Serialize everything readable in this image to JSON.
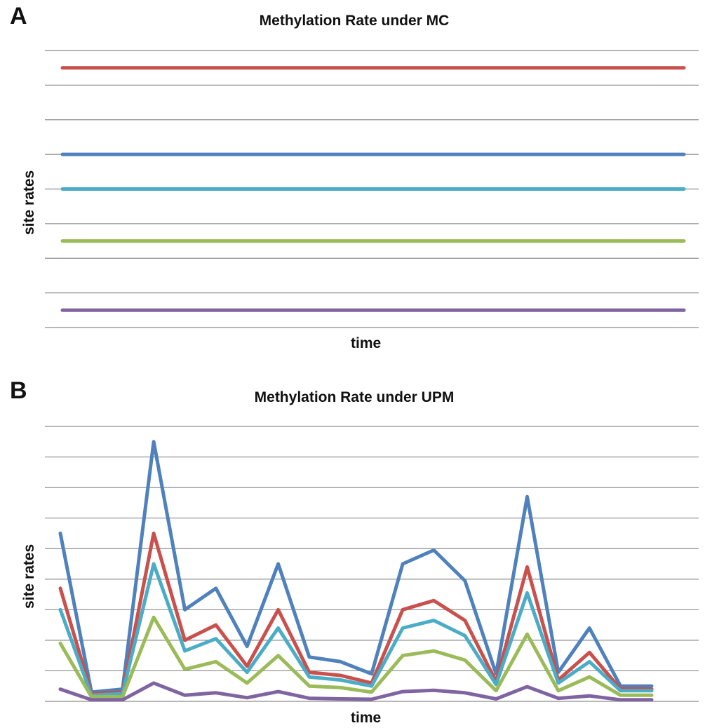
{
  "panels": {
    "a": {
      "letter": "A"
    },
    "b": {
      "letter": "B"
    }
  },
  "chart_data": [
    {
      "type": "line",
      "title": "Methylation Rate under MC",
      "xlabel": "time",
      "ylabel": "site rates",
      "ylim": [
        0,
        8
      ],
      "grid": true,
      "legend": "none",
      "x": [
        0,
        1
      ],
      "series": [
        {
          "color": "#c9504c",
          "values": [
            7.5,
            7.5
          ]
        },
        {
          "color": "#4f81bd",
          "values": [
            5.0,
            5.0
          ]
        },
        {
          "color": "#4bacc6",
          "values": [
            4.0,
            4.0
          ]
        },
        {
          "color": "#9bbb59",
          "values": [
            2.5,
            2.5
          ]
        },
        {
          "color": "#8064a2",
          "values": [
            0.5,
            0.5
          ]
        }
      ]
    },
    {
      "type": "line",
      "title": "Methylation Rate under UPM",
      "xlabel": "time",
      "ylabel": "site rates",
      "ylim": [
        0,
        9
      ],
      "grid": true,
      "legend": "none",
      "x": [
        1,
        2,
        3,
        4,
        5,
        6,
        7,
        8,
        9,
        10,
        11,
        12,
        13,
        14,
        15,
        16,
        17,
        18,
        19,
        20
      ],
      "series": [
        {
          "color": "#4f81bd",
          "values": [
            5.5,
            0.3,
            0.4,
            8.5,
            3.0,
            3.7,
            1.8,
            4.5,
            1.45,
            1.3,
            0.9,
            4.5,
            4.95,
            3.95,
            0.9,
            6.7,
            0.95,
            2.4,
            0.5,
            0.5
          ]
        },
        {
          "color": "#c9504c",
          "values": [
            3.7,
            0.25,
            0.3,
            5.5,
            2.0,
            2.5,
            1.15,
            3.0,
            0.95,
            0.85,
            0.6,
            3.0,
            3.3,
            2.65,
            0.65,
            4.4,
            0.7,
            1.6,
            0.4,
            0.4
          ]
        },
        {
          "color": "#4bacc6",
          "values": [
            3.0,
            0.2,
            0.25,
            4.5,
            1.65,
            2.05,
            0.95,
            2.4,
            0.8,
            0.7,
            0.5,
            2.4,
            2.65,
            2.15,
            0.55,
            3.55,
            0.6,
            1.3,
            0.35,
            0.35
          ]
        },
        {
          "color": "#9bbb59",
          "values": [
            1.9,
            0.15,
            0.15,
            2.75,
            1.05,
            1.3,
            0.6,
            1.5,
            0.5,
            0.45,
            0.3,
            1.5,
            1.65,
            1.35,
            0.35,
            2.2,
            0.35,
            0.8,
            0.2,
            0.2
          ]
        },
        {
          "color": "#8064a2",
          "values": [
            0.4,
            0.05,
            0.05,
            0.6,
            0.2,
            0.28,
            0.12,
            0.32,
            0.1,
            0.08,
            0.07,
            0.32,
            0.36,
            0.28,
            0.08,
            0.48,
            0.1,
            0.18,
            0.05,
            0.05
          ]
        }
      ]
    }
  ]
}
